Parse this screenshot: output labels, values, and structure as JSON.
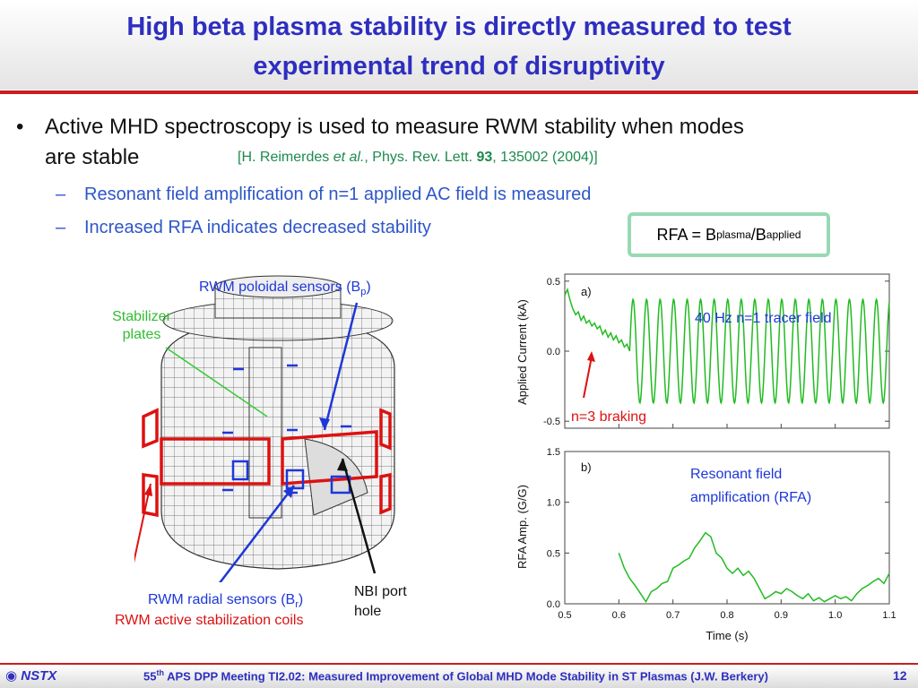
{
  "slide": {
    "title_line1": "High beta plasma stability is directly measured to test",
    "title_line2": "experimental trend of disruptivity",
    "bullet_marker": "•",
    "bullet_line1": "Active MHD spectroscopy is used to measure RWM stability when modes",
    "bullet_line2": "are stable",
    "citation": {
      "open": "[H. Reimerdes ",
      "etal": "et al.",
      "mid": ", Phys. Rev. Lett. ",
      "vol": "93",
      "end": ", 135002 (2004)]"
    },
    "subbullets": [
      {
        "dash": "–",
        "text": "Resonant field amplification of n=1 applied AC field is measured"
      },
      {
        "dash": "–",
        "text": "Increased RFA indicates decreased stability"
      }
    ],
    "formula": {
      "lhs": "RFA = B",
      "sub1": "plasma",
      "slash": "/B",
      "sub2": "applied"
    }
  },
  "diagram": {
    "poloidal_label": "RWM poloidal sensors (B",
    "poloidal_sub": "p",
    "poloidal_close": ")",
    "stabilizer_line1": "Stabilizer",
    "stabilizer_line2": "plates",
    "radial_label": "RWM radial sensors (B",
    "radial_sub": "r",
    "radial_close": ")",
    "coils_label": "RWM active stabilization coils",
    "nbi_line1": "NBI port",
    "nbi_line2": "hole"
  },
  "chart_data": [
    {
      "type": "line",
      "panel_label": "a)",
      "ylabel": "Applied Current (kA)",
      "yticks": [
        "0.5",
        "0.0",
        "-0.5"
      ],
      "ylim": [
        -0.55,
        0.55
      ],
      "xlim": [
        0.5,
        1.1
      ],
      "annotation_tracer": "40 Hz n=1 tracer field",
      "annotation_braking": "n=3 braking",
      "series": [
        {
          "segment": "braking",
          "x": [
            0.5,
            0.505,
            0.51,
            0.515,
            0.52,
            0.525,
            0.53,
            0.535,
            0.54,
            0.545,
            0.55,
            0.555,
            0.56,
            0.565,
            0.57,
            0.575,
            0.58,
            0.585,
            0.59,
            0.595,
            0.6,
            0.605,
            0.61,
            0.615,
            0.62
          ],
          "values": [
            0.4,
            0.44,
            0.36,
            0.3,
            0.26,
            0.28,
            0.22,
            0.25,
            0.2,
            0.22,
            0.18,
            0.2,
            0.16,
            0.18,
            0.12,
            0.15,
            0.1,
            0.13,
            0.08,
            0.11,
            0.06,
            0.08,
            0.03,
            0.05,
            0.0
          ]
        },
        {
          "segment": "tracer",
          "amplitude": 0.37,
          "frequency_hz": 40,
          "x_start": 0.62,
          "x_end": 1.1
        }
      ]
    },
    {
      "type": "line",
      "panel_label": "b)",
      "ylabel": "RFA Amp. (G/G)",
      "xlabel": "Time (s)",
      "yticks": [
        "1.5",
        "1.0",
        "0.5",
        "0.0"
      ],
      "xticks": [
        "0.5",
        "0.6",
        "0.7",
        "0.8",
        "0.9",
        "1.0",
        "1.1"
      ],
      "ylim": [
        0,
        1.5
      ],
      "xlim": [
        0.5,
        1.1
      ],
      "annotation_line1": "Resonant field",
      "annotation_line2": "amplification (RFA)",
      "series": [
        {
          "x": [
            0.6,
            0.61,
            0.62,
            0.63,
            0.64,
            0.65,
            0.66,
            0.67,
            0.68,
            0.69,
            0.7,
            0.71,
            0.72,
            0.73,
            0.74,
            0.75,
            0.76,
            0.77,
            0.78,
            0.79,
            0.8,
            0.81,
            0.82,
            0.83,
            0.84,
            0.85,
            0.86,
            0.87,
            0.88,
            0.89,
            0.9,
            0.91,
            0.92,
            0.93,
            0.94,
            0.95,
            0.96,
            0.97,
            0.98,
            0.99,
            1.0,
            1.01,
            1.02,
            1.03,
            1.04,
            1.05,
            1.06,
            1.07,
            1.08,
            1.09,
            1.1
          ],
          "values": [
            0.5,
            0.35,
            0.25,
            0.18,
            0.1,
            0.02,
            0.12,
            0.15,
            0.2,
            0.22,
            0.35,
            0.38,
            0.42,
            0.45,
            0.55,
            0.62,
            0.7,
            0.66,
            0.5,
            0.45,
            0.35,
            0.3,
            0.35,
            0.28,
            0.32,
            0.25,
            0.15,
            0.05,
            0.08,
            0.12,
            0.1,
            0.15,
            0.12,
            0.08,
            0.05,
            0.1,
            0.03,
            0.06,
            0.02,
            0.05,
            0.08,
            0.05,
            0.07,
            0.03,
            0.1,
            0.15,
            0.18,
            0.22,
            0.25,
            0.2,
            0.3
          ]
        }
      ]
    }
  ],
  "footer": {
    "logo": "NSTX",
    "meeting_pre": "55",
    "meeting_sup": "th",
    "meeting_text": " APS DPP Meeting TI2.02: Measured Improvement of Global MHD Mode Stability in ST Plasmas (J.W. Berkery)",
    "page": "12"
  },
  "colors": {
    "title": "#2e2ec0",
    "accent_red": "#c81e1e",
    "citation_green": "#1d8a4d",
    "sub_blue": "#2e56c9",
    "trace_green": "#22bb22",
    "formula_border": "#98d9b4"
  }
}
